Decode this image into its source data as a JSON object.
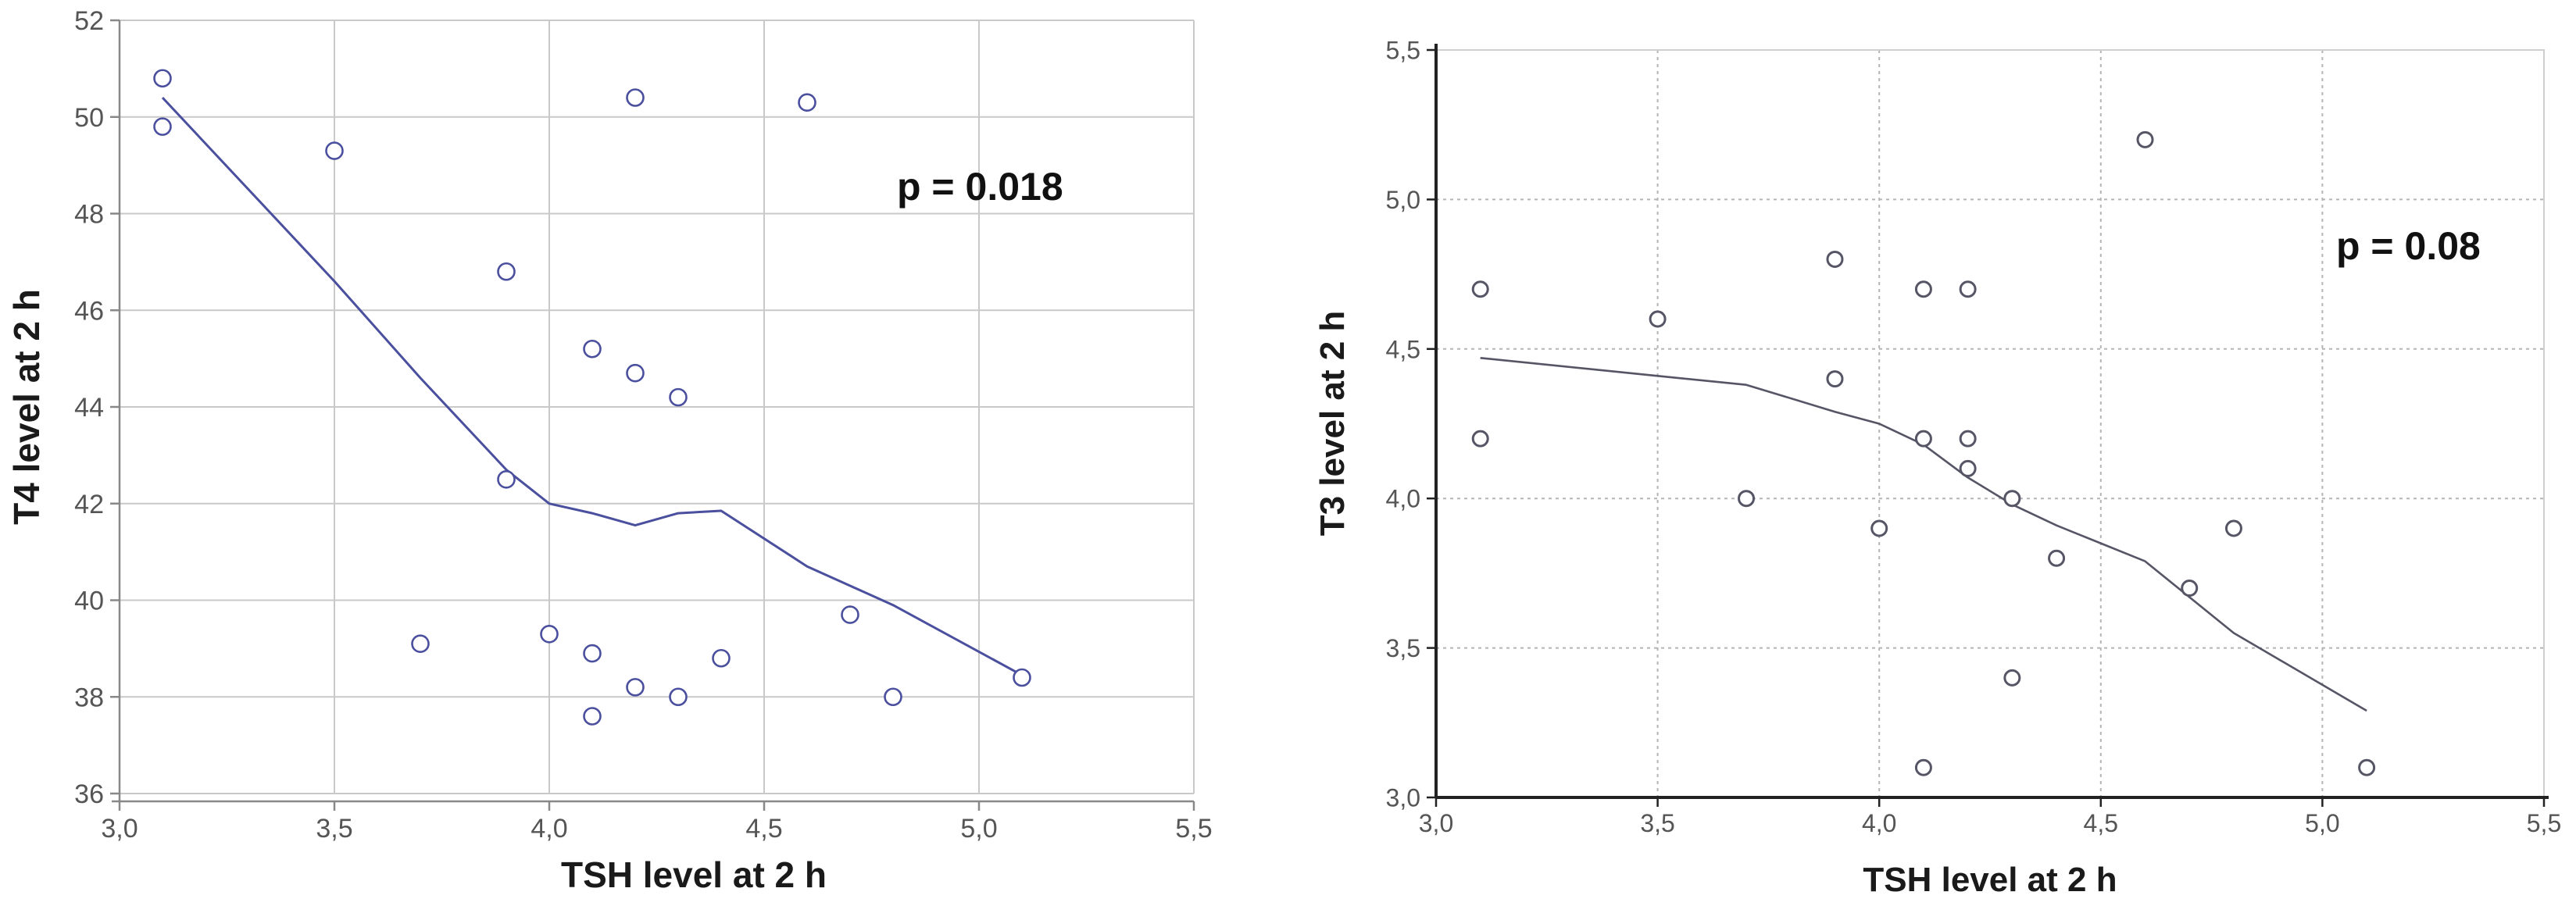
{
  "chart_data": [
    {
      "type": "scatter",
      "title": "",
      "xlabel": "TSH level at 2 h",
      "ylabel": "T4 level at 2 h",
      "annotation": "p = 0.018",
      "xlim": [
        3.0,
        5.5
      ],
      "ylim": [
        36,
        52
      ],
      "x_ticks": [
        3.0,
        3.5,
        4.0,
        4.5,
        5.0,
        5.5
      ],
      "x_tick_labels": [
        "3,0",
        "3,5",
        "4,0",
        "4,5",
        "5,0",
        "5,5"
      ],
      "y_ticks": [
        36,
        38,
        40,
        42,
        44,
        46,
        48,
        50,
        52
      ],
      "y_tick_labels": [
        "36",
        "38",
        "40",
        "42",
        "44",
        "46",
        "48",
        "50",
        "52"
      ],
      "grid": "solid",
      "color": "#4a4f9e",
      "points": [
        {
          "x": 3.1,
          "y": 50.8
        },
        {
          "x": 3.1,
          "y": 49.8
        },
        {
          "x": 3.5,
          "y": 49.3
        },
        {
          "x": 3.7,
          "y": 39.1
        },
        {
          "x": 3.9,
          "y": 46.8
        },
        {
          "x": 3.9,
          "y": 42.5
        },
        {
          "x": 4.0,
          "y": 39.3
        },
        {
          "x": 4.1,
          "y": 45.2
        },
        {
          "x": 4.1,
          "y": 38.9
        },
        {
          "x": 4.1,
          "y": 37.6
        },
        {
          "x": 4.2,
          "y": 50.4
        },
        {
          "x": 4.2,
          "y": 44.7
        },
        {
          "x": 4.2,
          "y": 38.2
        },
        {
          "x": 4.3,
          "y": 44.2
        },
        {
          "x": 4.3,
          "y": 38.0
        },
        {
          "x": 4.4,
          "y": 38.8
        },
        {
          "x": 4.6,
          "y": 50.3
        },
        {
          "x": 4.7,
          "y": 39.7
        },
        {
          "x": 4.8,
          "y": 38.0
        },
        {
          "x": 5.1,
          "y": 38.4
        }
      ],
      "trend_line": [
        {
          "x": 3.1,
          "y": 50.4
        },
        {
          "x": 3.5,
          "y": 46.6
        },
        {
          "x": 3.7,
          "y": 44.6
        },
        {
          "x": 3.9,
          "y": 42.7
        },
        {
          "x": 4.0,
          "y": 42.0
        },
        {
          "x": 4.1,
          "y": 41.8
        },
        {
          "x": 4.2,
          "y": 41.55
        },
        {
          "x": 4.3,
          "y": 41.8
        },
        {
          "x": 4.4,
          "y": 41.85
        },
        {
          "x": 4.6,
          "y": 40.7
        },
        {
          "x": 4.8,
          "y": 39.9
        },
        {
          "x": 5.1,
          "y": 38.45
        }
      ]
    },
    {
      "type": "scatter",
      "title": "",
      "xlabel": "TSH level at 2 h",
      "ylabel": "T3 level at 2 h",
      "annotation": "p = 0.08",
      "xlim": [
        3.0,
        5.5
      ],
      "ylim": [
        3.0,
        5.5
      ],
      "x_ticks": [
        3.0,
        3.5,
        4.0,
        4.5,
        5.0,
        5.5
      ],
      "x_tick_labels": [
        "3,0",
        "3,5",
        "4,0",
        "4,5",
        "5,0",
        "5,5"
      ],
      "y_ticks": [
        3.0,
        3.5,
        4.0,
        4.5,
        5.0,
        5.5
      ],
      "y_tick_labels": [
        "3,0",
        "3,5",
        "4,0",
        "4,5",
        "5,0",
        "5,5"
      ],
      "grid": "dotted",
      "color": "#555566",
      "points": [
        {
          "x": 3.1,
          "y": 4.7
        },
        {
          "x": 3.1,
          "y": 4.2
        },
        {
          "x": 3.5,
          "y": 4.6
        },
        {
          "x": 3.7,
          "y": 4.0
        },
        {
          "x": 3.9,
          "y": 4.8
        },
        {
          "x": 3.9,
          "y": 4.4
        },
        {
          "x": 4.0,
          "y": 3.9
        },
        {
          "x": 4.1,
          "y": 4.7
        },
        {
          "x": 4.1,
          "y": 4.2
        },
        {
          "x": 4.1,
          "y": 3.1
        },
        {
          "x": 4.2,
          "y": 4.7
        },
        {
          "x": 4.2,
          "y": 4.2
        },
        {
          "x": 4.2,
          "y": 4.1
        },
        {
          "x": 4.3,
          "y": 4.0
        },
        {
          "x": 4.3,
          "y": 3.4
        },
        {
          "x": 4.4,
          "y": 3.8
        },
        {
          "x": 4.6,
          "y": 5.2
        },
        {
          "x": 4.7,
          "y": 3.7
        },
        {
          "x": 4.8,
          "y": 3.9
        },
        {
          "x": 5.1,
          "y": 3.1
        }
      ],
      "trend_line": [
        {
          "x": 3.1,
          "y": 4.47
        },
        {
          "x": 3.5,
          "y": 4.41
        },
        {
          "x": 3.7,
          "y": 4.38
        },
        {
          "x": 3.9,
          "y": 4.29
        },
        {
          "x": 4.0,
          "y": 4.25
        },
        {
          "x": 4.1,
          "y": 4.18
        },
        {
          "x": 4.2,
          "y": 4.07
        },
        {
          "x": 4.3,
          "y": 3.98
        },
        {
          "x": 4.4,
          "y": 3.91
        },
        {
          "x": 4.6,
          "y": 3.79
        },
        {
          "x": 4.8,
          "y": 3.55
        },
        {
          "x": 5.1,
          "y": 3.29
        }
      ]
    }
  ]
}
